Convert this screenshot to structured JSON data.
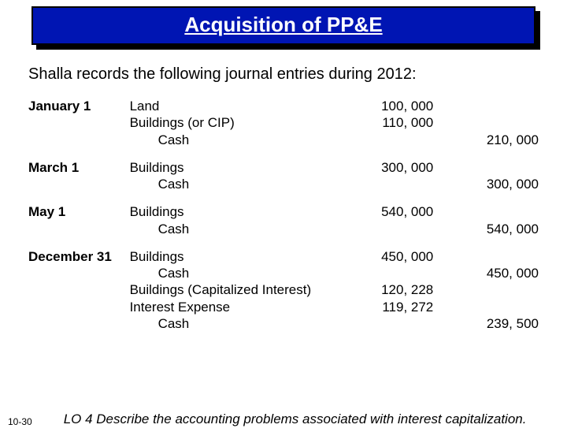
{
  "title": "Acquisition of PP&E",
  "lead": "Shalla records the following journal entries during 2012:",
  "entries": [
    {
      "date": "January 1",
      "lines": [
        {
          "account": "Land",
          "indent": false,
          "debit": "100, 000",
          "credit": ""
        },
        {
          "account": "Buildings (or CIP)",
          "indent": false,
          "debit": "110, 000",
          "credit": ""
        },
        {
          "account": "Cash",
          "indent": true,
          "debit": "",
          "credit": "210, 000"
        }
      ]
    },
    {
      "date": "March 1",
      "lines": [
        {
          "account": "Buildings",
          "indent": false,
          "debit": "300, 000",
          "credit": ""
        },
        {
          "account": "Cash",
          "indent": true,
          "debit": "",
          "credit": "300, 000"
        }
      ]
    },
    {
      "date": "May 1",
      "lines": [
        {
          "account": "Buildings",
          "indent": false,
          "debit": "540, 000",
          "credit": ""
        },
        {
          "account": "Cash",
          "indent": true,
          "debit": "",
          "credit": "540, 000"
        }
      ]
    },
    {
      "date": "December 31",
      "lines": [
        {
          "account": "Buildings",
          "indent": false,
          "debit": "450, 000",
          "credit": ""
        },
        {
          "account": "Cash",
          "indent": true,
          "debit": "",
          "credit": "450, 000"
        },
        {
          "account": "Buildings (Capitalized Interest)",
          "indent": false,
          "debit": "120, 228",
          "credit": ""
        },
        {
          "account": "Interest Expense",
          "indent": false,
          "debit": "119, 272",
          "credit": ""
        },
        {
          "account": "Cash",
          "indent": true,
          "debit": "",
          "credit": "239, 500"
        }
      ]
    }
  ],
  "slide_number": "10-30",
  "learning_objective": "LO 4  Describe the accounting problems associated with interest capitalization."
}
